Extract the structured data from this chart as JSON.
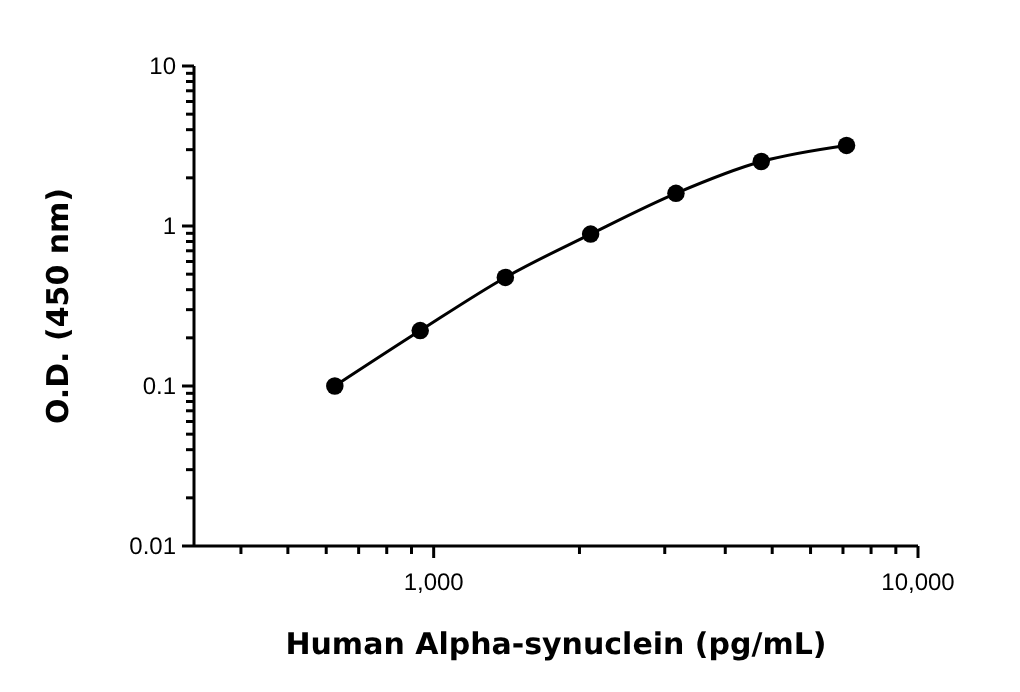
{
  "chart_data": {
    "type": "line",
    "xlabel": "Human Alpha-synuclein (pg/mL)",
    "ylabel": "O.D. (450 nm)",
    "log": "xy",
    "marker": "circle",
    "line_style": "solid",
    "grid": false,
    "x": [
      625,
      938,
      1406,
      2109,
      3164,
      4746,
      7119
    ],
    "series": [
      {
        "color": "#000000",
        "values": [
          0.1,
          0.222,
          0.477,
          0.89,
          1.6,
          2.53,
          3.19
        ]
      }
    ],
    "xlim": [
      320,
      10000
    ],
    "xticks": [
      {
        "value": 400,
        "label": null
      },
      {
        "value": 500,
        "label": null
      },
      {
        "value": 600,
        "label": null
      },
      {
        "value": 700,
        "label": null
      },
      {
        "value": 800,
        "label": null
      },
      {
        "value": 900,
        "label": null
      },
      {
        "value": 1000,
        "label": "1,000"
      },
      {
        "value": 2000,
        "label": null
      },
      {
        "value": 3000,
        "label": null
      },
      {
        "value": 4000,
        "label": null
      },
      {
        "value": 5000,
        "label": null
      },
      {
        "value": 6000,
        "label": null
      },
      {
        "value": 7000,
        "label": null
      },
      {
        "value": 8000,
        "label": null
      },
      {
        "value": 9000,
        "label": null
      },
      {
        "value": 10000,
        "label": "10,000"
      }
    ],
    "ylim": [
      0.01,
      10
    ],
    "yticks": [
      0.01,
      {
        "value": 0.02,
        "label": null
      },
      {
        "value": 0.03,
        "label": null
      },
      {
        "value": 0.04,
        "label": null
      },
      {
        "value": 0.05,
        "label": null
      },
      {
        "value": 0.06,
        "label": null
      },
      {
        "value": 0.07,
        "label": null
      },
      {
        "value": 0.08,
        "label": null
      },
      {
        "value": 0.09,
        "label": null
      },
      0.1,
      {
        "value": 0.2,
        "label": null
      },
      {
        "value": 0.3,
        "label": null
      },
      {
        "value": 0.4,
        "label": null
      },
      {
        "value": 0.5,
        "label": null
      },
      {
        "value": 0.6,
        "label": null
      },
      {
        "value": 0.7,
        "label": null
      },
      {
        "value": 0.8,
        "label": null
      },
      {
        "value": 0.9,
        "label": null
      },
      1,
      {
        "value": 2,
        "label": null
      },
      {
        "value": 3,
        "label": null
      },
      {
        "value": 4,
        "label": null
      },
      {
        "value": 5,
        "label": null
      },
      {
        "value": 6,
        "label": null
      },
      {
        "value": 7,
        "label": null
      },
      {
        "value": 8,
        "label": null
      },
      {
        "value": 9,
        "label": null
      },
      10
    ]
  }
}
